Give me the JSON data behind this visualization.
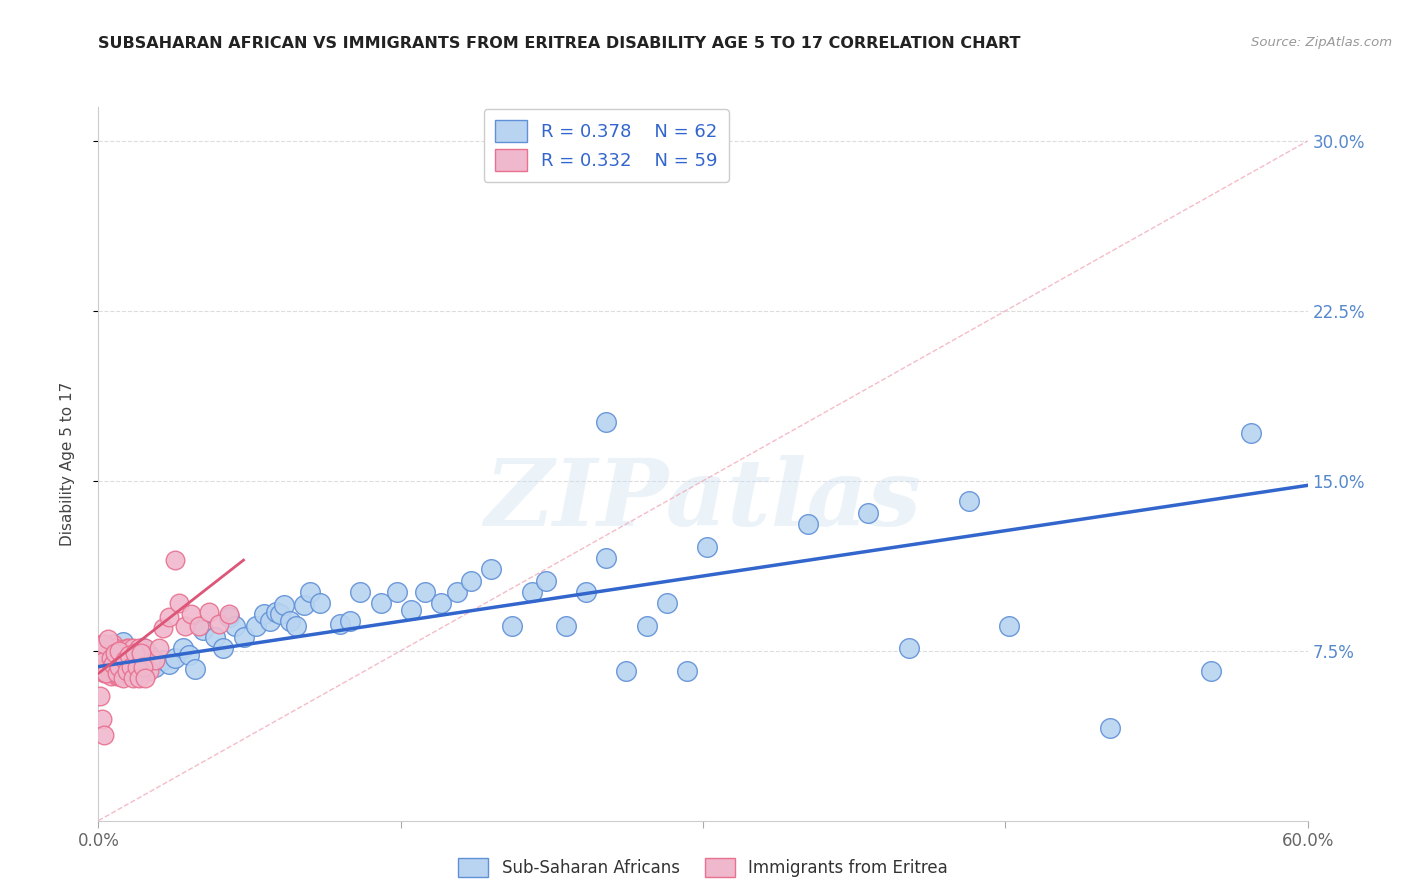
{
  "title": "SUBSAHARAN AFRICAN VS IMMIGRANTS FROM ERITREA DISABILITY AGE 5 TO 17 CORRELATION CHART",
  "source": "Source: ZipAtlas.com",
  "ylabel": "Disability Age 5 to 17",
  "xlabel": "",
  "xlim": [
    0.0,
    0.6
  ],
  "ylim": [
    0.0,
    0.315
  ],
  "xticks": [
    0.0,
    0.15,
    0.3,
    0.45,
    0.6
  ],
  "yticks": [
    0.075,
    0.15,
    0.225,
    0.3
  ],
  "xtick_labels": [
    "0.0%",
    "",
    "",
    "",
    "60.0%"
  ],
  "ytick_labels_right": [
    "7.5%",
    "15.0%",
    "22.5%",
    "30.0%"
  ],
  "legend_R1": "R = 0.378",
  "legend_N1": "N = 62",
  "legend_R2": "R = 0.332",
  "legend_N2": "N = 59",
  "color_blue": "#b8d4f0",
  "color_pink": "#f0b8cc",
  "color_blue_edge": "#6090d8",
  "color_pink_edge": "#e87090",
  "color_line_blue": "#3366cc",
  "color_line_pink": "#dd5577",
  "color_diag": "#f0a0b0",
  "color_grid": "#dddddd",
  "watermark": "ZIPatlas",
  "blue_scatter_x": [
    0.005,
    0.008,
    0.012,
    0.015,
    0.018,
    0.022,
    0.025,
    0.028,
    0.032,
    0.035,
    0.038,
    0.042,
    0.045,
    0.048,
    0.052,
    0.058,
    0.062,
    0.065,
    0.068,
    0.072,
    0.078,
    0.082,
    0.085,
    0.088,
    0.09,
    0.092,
    0.095,
    0.098,
    0.102,
    0.105,
    0.11,
    0.12,
    0.125,
    0.13,
    0.14,
    0.148,
    0.155,
    0.162,
    0.17,
    0.178,
    0.185,
    0.195,
    0.205,
    0.215,
    0.222,
    0.232,
    0.242,
    0.252,
    0.262,
    0.272,
    0.282,
    0.292,
    0.302,
    0.352,
    0.382,
    0.402,
    0.432,
    0.452,
    0.502,
    0.552,
    0.252,
    0.572
  ],
  "blue_scatter_y": [
    0.073,
    0.068,
    0.079,
    0.072,
    0.07,
    0.076,
    0.073,
    0.068,
    0.071,
    0.069,
    0.072,
    0.076,
    0.073,
    0.067,
    0.084,
    0.081,
    0.076,
    0.09,
    0.086,
    0.081,
    0.086,
    0.091,
    0.088,
    0.092,
    0.091,
    0.095,
    0.088,
    0.086,
    0.095,
    0.101,
    0.096,
    0.087,
    0.088,
    0.101,
    0.096,
    0.101,
    0.093,
    0.101,
    0.096,
    0.101,
    0.106,
    0.111,
    0.086,
    0.101,
    0.106,
    0.086,
    0.101,
    0.116,
    0.066,
    0.086,
    0.096,
    0.066,
    0.121,
    0.131,
    0.136,
    0.076,
    0.141,
    0.086,
    0.041,
    0.066,
    0.176,
    0.171
  ],
  "pink_scatter_x": [
    0.001,
    0.002,
    0.002,
    0.003,
    0.003,
    0.004,
    0.004,
    0.004,
    0.005,
    0.005,
    0.005,
    0.006,
    0.006,
    0.006,
    0.007,
    0.007,
    0.007,
    0.008,
    0.008,
    0.008,
    0.009,
    0.009,
    0.009,
    0.01,
    0.01,
    0.01,
    0.011,
    0.011,
    0.012,
    0.012,
    0.013,
    0.013,
    0.014,
    0.014,
    0.015,
    0.015,
    0.016,
    0.016,
    0.017,
    0.017,
    0.018,
    0.019,
    0.02,
    0.021,
    0.022,
    0.023,
    0.025,
    0.028,
    0.03,
    0.032,
    0.035,
    0.038,
    0.04,
    0.043,
    0.046,
    0.05,
    0.055,
    0.06,
    0.065
  ],
  "pink_scatter_y": [
    0.073,
    0.068,
    0.078,
    0.065,
    0.075,
    0.07,
    0.065,
    0.076,
    0.071,
    0.068,
    0.074,
    0.069,
    0.064,
    0.072,
    0.078,
    0.065,
    0.071,
    0.076,
    0.065,
    0.072,
    0.069,
    0.064,
    0.075,
    0.069,
    0.064,
    0.074,
    0.064,
    0.071,
    0.075,
    0.065,
    0.071,
    0.065,
    0.076,
    0.066,
    0.071,
    0.076,
    0.066,
    0.071,
    0.066,
    0.076,
    0.066,
    0.071,
    0.076,
    0.066,
    0.071,
    0.076,
    0.066,
    0.071,
    0.076,
    0.085,
    0.09,
    0.115,
    0.096,
    0.086,
    0.091,
    0.086,
    0.092,
    0.087,
    0.091
  ],
  "pink_scatter_extra_x": [
    0.001,
    0.002,
    0.003,
    0.004,
    0.005,
    0.006,
    0.007,
    0.008,
    0.009,
    0.01,
    0.01,
    0.012,
    0.013,
    0.014,
    0.015,
    0.016,
    0.017,
    0.018,
    0.019,
    0.02,
    0.021,
    0.022,
    0.023,
    0.001,
    0.002,
    0.003
  ],
  "pink_scatter_extra_y": [
    0.075,
    0.07,
    0.078,
    0.065,
    0.08,
    0.072,
    0.069,
    0.074,
    0.065,
    0.075,
    0.068,
    0.063,
    0.071,
    0.066,
    0.073,
    0.068,
    0.063,
    0.074,
    0.068,
    0.063,
    0.074,
    0.068,
    0.063,
    0.055,
    0.045,
    0.038
  ],
  "blue_line_x": [
    0.0,
    0.6
  ],
  "blue_line_y": [
    0.068,
    0.148
  ],
  "pink_line_x": [
    0.0,
    0.072
  ],
  "pink_line_y": [
    0.065,
    0.115
  ],
  "diag_line_x": [
    0.0,
    0.6
  ],
  "diag_line_y": [
    0.0,
    0.3
  ]
}
